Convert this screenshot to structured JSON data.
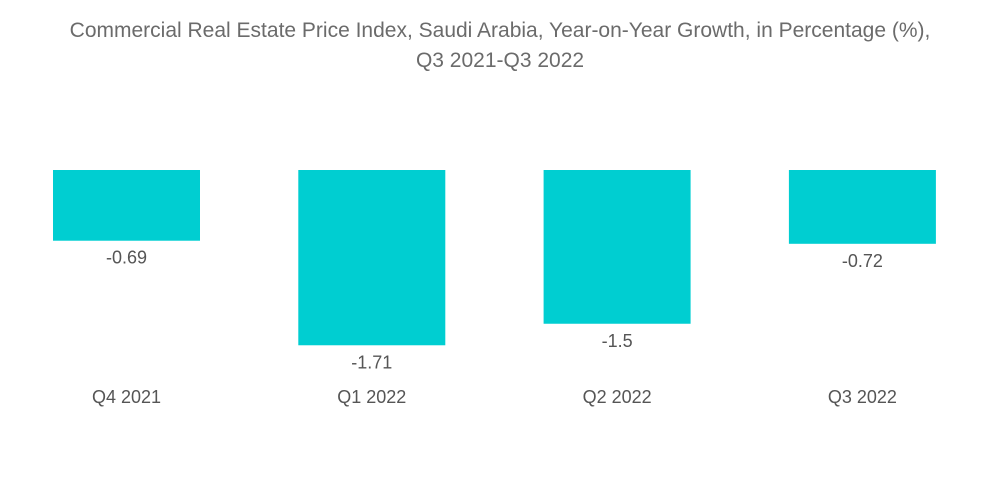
{
  "chart_data": {
    "type": "bar",
    "title_line1": "Commercial Real Estate Price Index, Saudi Arabia, Year-on-Year Growth, in Percentage (%),",
    "title_line2": "Q3 2021-Q3 2022",
    "categories": [
      "Q4 2021",
      "Q1 2022",
      "Q2 2022",
      "Q3 2022"
    ],
    "values": [
      -0.69,
      -1.71,
      -1.5,
      -0.72
    ],
    "data_labels": [
      "-0.69",
      "-1.71",
      "-1.5",
      "-0.72"
    ],
    "xlabel": "",
    "ylabel": "",
    "grid": false,
    "legend": "none",
    "bar_color": "#00CED1"
  }
}
